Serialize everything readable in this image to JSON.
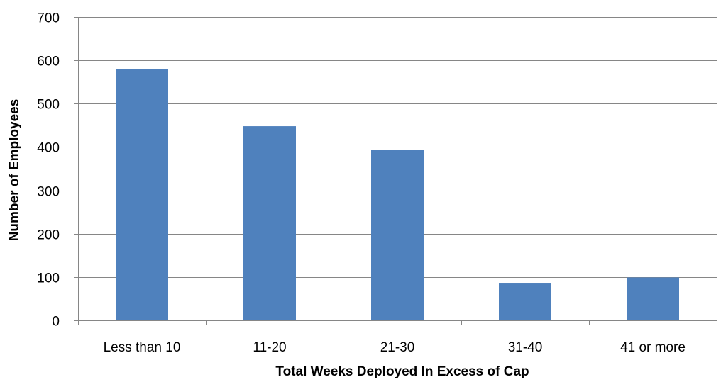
{
  "chart_data": {
    "type": "bar",
    "categories": [
      "Less than 10",
      "11-20",
      "21-30",
      "31-40",
      "41 or more"
    ],
    "series": [
      {
        "values": [
          580,
          448,
          393,
          85,
          99
        ]
      }
    ],
    "title": "",
    "xlabel": "Total Weeks Deployed In Excess of Cap",
    "ylabel": "Number of Employees",
    "ylim": [
      0,
      700
    ],
    "yticks": [
      0,
      100,
      200,
      300,
      400,
      500,
      600,
      700
    ],
    "grid": true,
    "legend": "none",
    "bar_color": "#4f81bd"
  }
}
